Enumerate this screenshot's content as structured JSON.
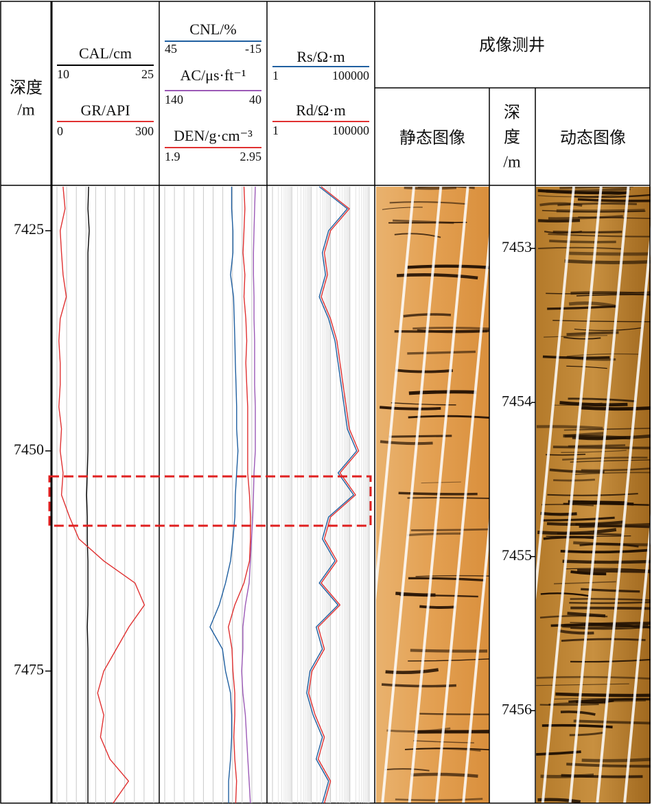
{
  "chart_data": {
    "type": "well-log",
    "depth_label": [
      "深度",
      "/m"
    ],
    "ylim": [
      7420,
      7490
    ],
    "yticks": [
      7425,
      7450,
      7475
    ],
    "depth": [
      7420,
      7422.5,
      7425,
      7427.5,
      7430,
      7432.5,
      7435,
      7437.5,
      7440,
      7442.5,
      7445,
      7447.5,
      7450,
      7452.5,
      7455,
      7457.5,
      7460,
      7462.5,
      7465,
      7467.5,
      7470,
      7472.5,
      7475,
      7477.5,
      7480,
      7482.5,
      7485,
      7487.5,
      7490
    ],
    "highlight": [
      7452.9,
      7458.5
    ],
    "tracks": [
      {
        "xlim": [
          0,
          300
        ],
        "xticks": [
          0,
          30,
          60,
          90,
          120,
          150,
          180,
          210,
          240,
          270,
          300
        ],
        "series": [
          {
            "name": "CAL/cm",
            "color": "#000000",
            "xlim": [
              10,
              25
            ],
            "values": [
              14.9,
              14.8,
              15.0,
              14.8,
              14.8,
              14.8,
              14.8,
              14.8,
              14.8,
              14.8,
              14.8,
              14.8,
              14.8,
              14.7,
              14.6,
              14.7,
              14.7,
              14.8,
              14.8,
              14.8,
              14.7,
              14.8,
              14.8,
              14.8,
              14.8,
              14.8,
              14.8,
              14.8,
              14.8
            ]
          },
          {
            "name": "GR/API",
            "color": "#e03030",
            "xlim": [
              0,
              300
            ],
            "values": [
              19,
              25,
              10,
              14,
              19,
              29,
              10,
              6,
              10,
              10,
              6,
              14,
              10,
              19,
              14,
              39,
              68,
              145,
              242,
              271,
              223,
              184,
              145,
              126,
              145,
              135,
              164,
              222,
              174
            ]
          }
        ]
      },
      {
        "xlim": [
          45,
          -15
        ],
        "xticks": [
          45,
          39,
          33,
          27,
          21,
          15,
          9,
          3,
          -3,
          -9,
          -15
        ],
        "series": [
          {
            "name": "CNL/%",
            "color": "#1f5fa0",
            "xlim": [
              45,
              -15
            ],
            "values": [
              3.5,
              3.5,
              2.7,
              2.7,
              4.2,
              2.3,
              1.9,
              1.5,
              1.2,
              0.8,
              0.4,
              0.4,
              -0.4,
              0.4,
              1.2,
              1.5,
              2.7,
              4.2,
              7.3,
              11.2,
              16.9,
              9.2,
              7.3,
              4.2,
              3.5,
              3.5,
              4.2,
              5.4,
              5.4
            ]
          },
          {
            "name": "AC/μs·ft⁻¹",
            "color": "#9b59b6",
            "xlim": [
              140,
              40
            ],
            "values": [
              46.4,
              47.1,
              47.7,
              48.3,
              48.3,
              47.7,
              47.7,
              47.1,
              47.1,
              47.1,
              46.4,
              46.4,
              46.4,
              47.7,
              48.3,
              49.0,
              50.3,
              51.5,
              52.8,
              56.7,
              59.2,
              59.2,
              60.5,
              59.2,
              56.7,
              55.4,
              54.1,
              52.8,
              51.5
            ]
          },
          {
            "name": "DEN/g·cm⁻³",
            "color": "#e03030",
            "xlim": [
              1.9,
              2.95
            ],
            "values": [
              2.76,
              2.77,
              2.76,
              2.75,
              2.77,
              2.76,
              2.78,
              2.79,
              2.78,
              2.79,
              2.8,
              2.8,
              2.8,
              2.8,
              2.82,
              2.83,
              2.83,
              2.82,
              2.76,
              2.66,
              2.59,
              2.63,
              2.64,
              2.66,
              2.66,
              2.65,
              2.66,
              2.68,
              2.67
            ]
          }
        ]
      },
      {
        "log": true,
        "xlim": [
          1,
          100000
        ],
        "xticks": [
          1,
          10,
          100,
          1000,
          10000,
          100000
        ],
        "series": [
          {
            "name": "Rs/Ω·m",
            "color": "#1f5fa0",
            "xlim": [
              1,
              100000
            ],
            "values": [
              263,
              7413,
              794,
              380,
              550,
              263,
              794,
              1698,
              2455,
              3548,
              5129,
              7413,
              22387,
              2455,
              15488,
              794,
              380,
              1698,
              263,
              2455,
              182,
              380,
              87,
              59,
              126,
              380,
              182,
              794,
              380
            ]
          },
          {
            "name": "Rd/Ω·m",
            "color": "#e03030",
            "xlim": [
              1,
              100000
            ],
            "values": [
              330,
              9330,
              1000,
              480,
              690,
              330,
              1000,
              2140,
              3090,
              4470,
              6460,
              9330,
              28180,
              3090,
              19500,
              1000,
              480,
              2140,
              330,
              3090,
              230,
              480,
              110,
              74,
              160,
              480,
              230,
              1000,
              480
            ]
          }
        ]
      }
    ],
    "imaging": {
      "title": "成像测井",
      "static_label": "静态图像",
      "dynamic_label": "动态图像",
      "depth_label": [
        "深",
        "度",
        "/m"
      ],
      "ylim": [
        7452.6,
        7456.6
      ],
      "yticks": [
        7453,
        7454,
        7455,
        7456
      ]
    }
  }
}
